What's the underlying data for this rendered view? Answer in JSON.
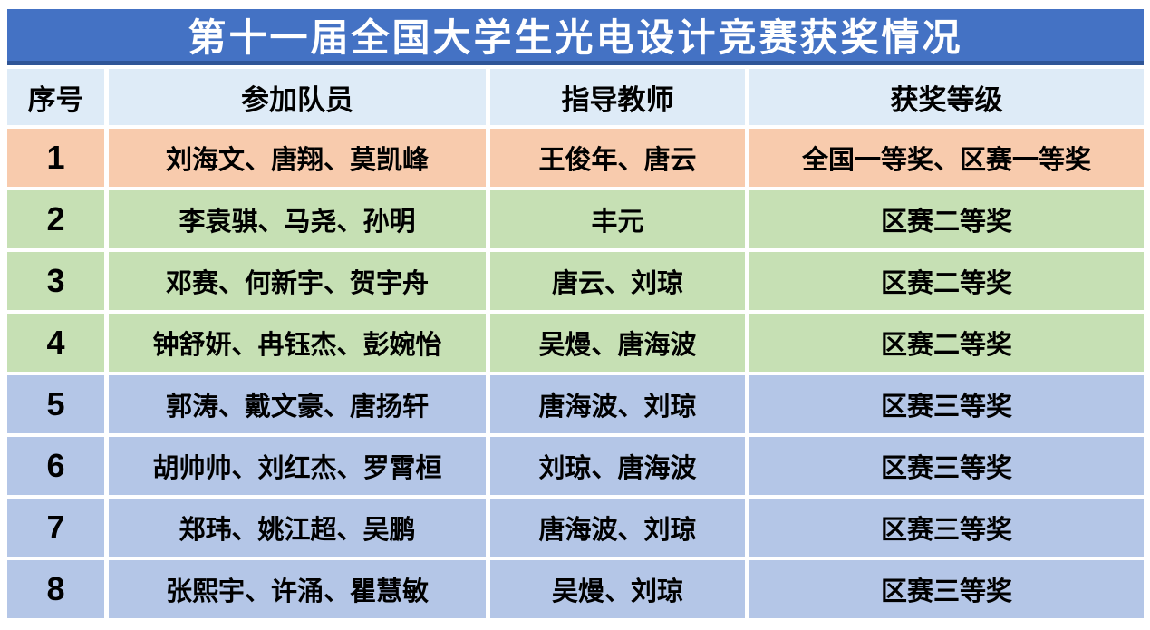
{
  "title": "第十一届全国大学生光电设计竞赛获奖情况",
  "columns": [
    "序号",
    "参加队员",
    "指导教师",
    "获奖等级"
  ],
  "rows": [
    {
      "id": "1",
      "members": "刘海文、唐翔、莫凯峰",
      "teachers": "王俊年、唐云",
      "award": "全国一等奖、区赛一等奖",
      "row_color": "#F8CBAD"
    },
    {
      "id": "2",
      "members": "李袁骐、马尧、孙明",
      "teachers": "丰元",
      "award": "区赛二等奖",
      "row_color": "#C6E0B4"
    },
    {
      "id": "3",
      "members": "邓赛、何新宇、贺宇舟",
      "teachers": "唐云、刘琼",
      "award": "区赛二等奖",
      "row_color": "#C6E0B4"
    },
    {
      "id": "4",
      "members": "钟舒妍、冉钰杰、彭婉怡",
      "teachers": "吴熳、唐海波",
      "award": "区赛二等奖",
      "row_color": "#C6E0B4"
    },
    {
      "id": "5",
      "members": "郭涛、戴文豪、唐扬轩",
      "teachers": "唐海波、刘琼",
      "award": "区赛三等奖",
      "row_color": "#B4C6E7"
    },
    {
      "id": "6",
      "members": "胡帅帅、刘红杰、罗霄桓",
      "teachers": "刘琼、唐海波",
      "award": "区赛三等奖",
      "row_color": "#B4C6E7"
    },
    {
      "id": "7",
      "members": "郑玮、姚江超、吴鹏",
      "teachers": "唐海波、刘琼",
      "award": "区赛三等奖",
      "row_color": "#B4C6E7"
    },
    {
      "id": "8",
      "members": "张熙宇、许涌、瞿慧敏",
      "teachers": "吴熳、刘琼",
      "award": "区赛三等奖",
      "row_color": "#B4C6E7"
    }
  ],
  "colors": {
    "title_bar": "#4472C4",
    "title_bar_bottom_edge": "#2F5597",
    "title_text": "#FFFFFF",
    "header_row": "#DEEBF7",
    "first_prize_row": "#F8CBAD",
    "second_prize_rows": "#C6E0B4",
    "third_prize_rows": "#B4C6E7",
    "cell_text": "#000000",
    "gridline": "#FFFFFF"
  }
}
